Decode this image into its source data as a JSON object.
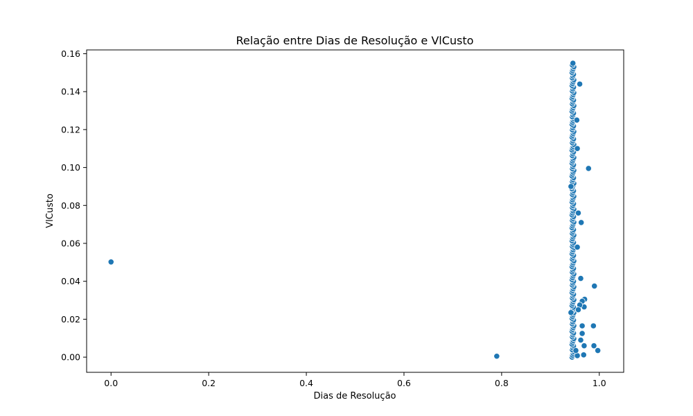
{
  "chart_data": {
    "type": "scatter",
    "title": "Relação entre Dias de Resolução e VlCusto",
    "xlabel": "Dias de Resolução",
    "ylabel": "VlCusto",
    "xlim": [
      -0.05,
      1.05
    ],
    "ylim": [
      -0.008,
      0.162
    ],
    "xticks": [
      0.0,
      0.2,
      0.4,
      0.6,
      0.8,
      1.0
    ],
    "xtick_labels": [
      "0.0",
      "0.2",
      "0.4",
      "0.6",
      "0.8",
      "1.0"
    ],
    "yticks": [
      0.0,
      0.02,
      0.04,
      0.06,
      0.08,
      0.1,
      0.12,
      0.14,
      0.16
    ],
    "ytick_labels": [
      "0.00",
      "0.02",
      "0.04",
      "0.06",
      "0.08",
      "0.10",
      "0.12",
      "0.14",
      "0.16"
    ],
    "grid": false,
    "legend": "none",
    "marker_color": "#1f77b4",
    "marker_edge_color": "#ffffff",
    "points": [
      {
        "x": 0.0,
        "y": 0.0502
      },
      {
        "x": 0.79,
        "y": 0.0005
      },
      {
        "x": 0.997,
        "y": 0.0035
      },
      {
        "x": 0.989,
        "y": 0.006
      },
      {
        "x": 0.988,
        "y": 0.0165
      },
      {
        "x": 0.99,
        "y": 0.0375
      },
      {
        "x": 0.978,
        "y": 0.0995
      },
      {
        "x": 0.97,
        "y": 0.0305
      },
      {
        "x": 0.969,
        "y": 0.0265
      },
      {
        "x": 0.965,
        "y": 0.0295
      },
      {
        "x": 0.962,
        "y": 0.0415
      },
      {
        "x": 0.963,
        "y": 0.071
      },
      {
        "x": 0.957,
        "y": 0.076
      },
      {
        "x": 0.96,
        "y": 0.144
      },
      {
        "x": 0.969,
        "y": 0.006
      },
      {
        "x": 0.968,
        "y": 0.0012
      },
      {
        "x": 0.965,
        "y": 0.0125
      },
      {
        "x": 0.965,
        "y": 0.0165
      },
      {
        "x": 0.962,
        "y": 0.009
      },
      {
        "x": 0.96,
        "y": 0.0275
      },
      {
        "x": 0.957,
        "y": 0.025
      },
      {
        "x": 0.955,
        "y": 0.058
      },
      {
        "x": 0.955,
        "y": 0.11
      },
      {
        "x": 0.954,
        "y": 0.125
      },
      {
        "x": 0.942,
        "y": 0.09
      },
      {
        "x": 0.942,
        "y": 0.0235
      },
      {
        "x": 0.955,
        "y": 0.0008
      },
      {
        "x": 0.952,
        "y": 0.0035
      }
    ],
    "dense_column": {
      "x": 0.946,
      "y_min": 0.0,
      "y_max": 0.155,
      "count": 160
    }
  }
}
